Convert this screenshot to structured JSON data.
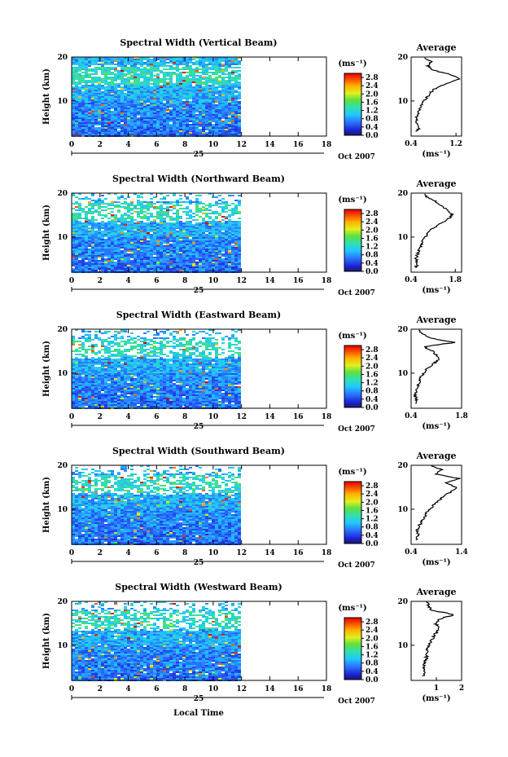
{
  "figure": {
    "xlabel": "Local Time",
    "date_label": "Oct 2007",
    "day_label": "25",
    "ylabel": "Height (km)",
    "unit": "(ms⁻¹)",
    "avg_title": "Average",
    "avg_xlabel": "(ms⁻¹)"
  },
  "chart_data": [
    {
      "type": "heatmap",
      "title": "Spectral Width (Vertical Beam)",
      "xlim": [
        0,
        18
      ],
      "ylim": [
        2,
        20
      ],
      "x_ticks": [
        "0",
        "2",
        "4",
        "6",
        "8",
        "10",
        "12",
        "14",
        "16",
        "18"
      ],
      "y_ticks": [
        "10",
        "20"
      ],
      "data_xrange": [
        0,
        11.9
      ],
      "colorbar": {
        "range": [
          0,
          3.0
        ],
        "ticks": [
          "2.8",
          "2.4",
          "2.0",
          "1.6",
          "1.2",
          "0.8",
          "0.4",
          "0.0"
        ]
      },
      "average": {
        "xlim": [
          0.4,
          1.3
        ],
        "x_ticks": [
          "0.4",
          "1.2"
        ],
        "y_ticks": [
          "10",
          "20"
        ],
        "profile": [
          [
            3,
            0.5
          ],
          [
            4,
            0.55
          ],
          [
            5,
            0.48
          ],
          [
            6,
            0.5
          ],
          [
            7,
            0.52
          ],
          [
            8,
            0.55
          ],
          [
            9,
            0.58
          ],
          [
            10,
            0.62
          ],
          [
            11,
            0.7
          ],
          [
            12,
            0.75
          ],
          [
            13,
            0.85
          ],
          [
            14,
            1.05
          ],
          [
            15,
            1.25
          ],
          [
            16,
            1.1
          ],
          [
            17,
            0.8
          ],
          [
            18,
            0.7
          ],
          [
            19,
            0.75
          ],
          [
            20,
            0.6
          ]
        ]
      },
      "clim": [
        0.0,
        3.0
      ]
    },
    {
      "type": "heatmap",
      "title": "Spectral Width (Northward Beam)",
      "xlim": [
        0,
        18
      ],
      "ylim": [
        2,
        20
      ],
      "x_ticks": [
        "0",
        "2",
        "4",
        "6",
        "8",
        "10",
        "12",
        "14",
        "16",
        "18"
      ],
      "y_ticks": [
        "10",
        "20"
      ],
      "data_xrange": [
        0,
        11.9
      ],
      "colorbar": {
        "range": [
          0,
          3.0
        ],
        "ticks": [
          "2.8",
          "2.4",
          "2.0",
          "1.6",
          "1.2",
          "0.8",
          "0.4",
          "0.0"
        ]
      },
      "average": {
        "xlim": [
          0.4,
          2.0
        ],
        "x_ticks": [
          "0.4",
          "1.8"
        ],
        "y_ticks": [
          "10",
          "20"
        ],
        "profile": [
          [
            3,
            0.55
          ],
          [
            4,
            0.6
          ],
          [
            5,
            0.55
          ],
          [
            6,
            0.6
          ],
          [
            7,
            0.65
          ],
          [
            8,
            0.7
          ],
          [
            9,
            0.75
          ],
          [
            10,
            0.85
          ],
          [
            11,
            0.95
          ],
          [
            12,
            1.1
          ],
          [
            13,
            1.3
          ],
          [
            14,
            1.55
          ],
          [
            15,
            1.7
          ],
          [
            16,
            1.6
          ],
          [
            17,
            1.4
          ],
          [
            18,
            1.2
          ],
          [
            19,
            0.9
          ],
          [
            20,
            0.8
          ]
        ]
      },
      "clim": [
        0.0,
        3.0
      ]
    },
    {
      "type": "heatmap",
      "title": "Spectral Width (Eastward Beam)",
      "xlim": [
        0,
        18
      ],
      "ylim": [
        2,
        20
      ],
      "x_ticks": [
        "0",
        "2",
        "4",
        "6",
        "8",
        "10",
        "12",
        "14",
        "16",
        "18"
      ],
      "y_ticks": [
        "10",
        "20"
      ],
      "data_xrange": [
        0,
        11.9
      ],
      "colorbar": {
        "range": [
          0,
          3.0
        ],
        "ticks": [
          "2.8",
          "2.4",
          "2.0",
          "1.6",
          "1.2",
          "0.8",
          "0.4",
          "0.0"
        ]
      },
      "average": {
        "xlim": [
          0.4,
          1.8
        ],
        "x_ticks": [
          "0.4",
          "1.8"
        ],
        "y_ticks": [
          "10",
          "20"
        ],
        "profile": [
          [
            3,
            0.5
          ],
          [
            4,
            0.55
          ],
          [
            5,
            0.5
          ],
          [
            6,
            0.55
          ],
          [
            7,
            0.6
          ],
          [
            8,
            0.62
          ],
          [
            9,
            0.66
          ],
          [
            10,
            0.75
          ],
          [
            11,
            0.85
          ],
          [
            12,
            1.0
          ],
          [
            13,
            1.15
          ],
          [
            14,
            1.1
          ],
          [
            15,
            1.0
          ],
          [
            16,
            0.75
          ],
          [
            17,
            1.6
          ],
          [
            18,
            0.9
          ],
          [
            19,
            0.7
          ],
          [
            20,
            0.6
          ]
        ]
      },
      "clim": [
        0.0,
        3.0
      ]
    },
    {
      "type": "heatmap",
      "title": "Spectral Width (Southward Beam)",
      "xlim": [
        0,
        18
      ],
      "ylim": [
        2,
        20
      ],
      "x_ticks": [
        "0",
        "2",
        "4",
        "6",
        "8",
        "10",
        "12",
        "14",
        "16",
        "18"
      ],
      "y_ticks": [
        "10",
        "20"
      ],
      "data_xrange": [
        0,
        11.9
      ],
      "colorbar": {
        "range": [
          0,
          3.0
        ],
        "ticks": [
          "2.8",
          "2.4",
          "2.0",
          "1.6",
          "1.2",
          "0.8",
          "0.4",
          "0.0"
        ]
      },
      "average": {
        "xlim": [
          0.4,
          1.4
        ],
        "x_ticks": [
          "0.4",
          "1.4"
        ],
        "y_ticks": [
          "10",
          "20"
        ],
        "profile": [
          [
            3,
            0.5
          ],
          [
            4,
            0.55
          ],
          [
            5,
            0.52
          ],
          [
            6,
            0.55
          ],
          [
            7,
            0.6
          ],
          [
            8,
            0.65
          ],
          [
            9,
            0.7
          ],
          [
            10,
            0.78
          ],
          [
            11,
            0.85
          ],
          [
            12,
            0.95
          ],
          [
            13,
            1.05
          ],
          [
            14,
            1.2
          ],
          [
            15,
            1.3
          ],
          [
            16,
            1.1
          ],
          [
            17,
            1.35
          ],
          [
            18,
            0.9
          ],
          [
            19,
            1.0
          ],
          [
            20,
            0.75
          ]
        ]
      },
      "clim": [
        0.0,
        3.0
      ]
    },
    {
      "type": "heatmap",
      "title": "Spectral Width (Westward Beam)",
      "xlim": [
        0,
        18
      ],
      "ylim": [
        2,
        20
      ],
      "x_ticks": [
        "0",
        "2",
        "4",
        "6",
        "8",
        "10",
        "12",
        "14",
        "16",
        "18"
      ],
      "y_ticks": [
        "10",
        "20"
      ],
      "data_xrange": [
        0,
        11.9
      ],
      "colorbar": {
        "range": [
          0,
          3.0
        ],
        "ticks": [
          "2.8",
          "2.4",
          "2.0",
          "1.6",
          "1.2",
          "0.8",
          "0.4",
          "0.0"
        ]
      },
      "average": {
        "xlim": [
          0,
          2
        ],
        "x_ticks": [
          "1",
          "2"
        ],
        "y_ticks": [
          "10",
          "20"
        ],
        "profile": [
          [
            3,
            0.5
          ],
          [
            4,
            0.55
          ],
          [
            5,
            0.5
          ],
          [
            6,
            0.55
          ],
          [
            7,
            0.6
          ],
          [
            8,
            0.62
          ],
          [
            9,
            0.65
          ],
          [
            10,
            0.72
          ],
          [
            11,
            0.8
          ],
          [
            12,
            0.9
          ],
          [
            13,
            1.0
          ],
          [
            14,
            1.1
          ],
          [
            15,
            0.95
          ],
          [
            16,
            1.15
          ],
          [
            17,
            1.7
          ],
          [
            18,
            0.8
          ],
          [
            19,
            0.7
          ],
          [
            20,
            0.65
          ]
        ]
      },
      "clim": [
        0.0,
        3.0
      ]
    }
  ]
}
